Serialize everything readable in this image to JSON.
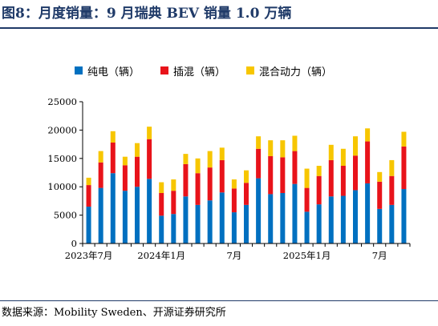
{
  "title": "图8：月度销量：9 月瑞典 BEV 销量 1.0 万辆",
  "source": "数据来源：Mobility Sweden、开源证券研究所",
  "colors": {
    "bev": "#0070c0",
    "phev": "#e8131a",
    "hev": "#f7c600",
    "title": "#1f3a68"
  },
  "chart_data": {
    "type": "bar",
    "stacked": true,
    "ylim": [
      0,
      25000
    ],
    "yticks": [
      0,
      5000,
      10000,
      15000,
      20000,
      25000
    ],
    "xtick_labels": [
      {
        "index": 0,
        "label": "2023年7月"
      },
      {
        "index": 6,
        "label": "2024年1月"
      },
      {
        "index": 12,
        "label": "7月"
      },
      {
        "index": 18,
        "label": "2025年1月"
      },
      {
        "index": 24,
        "label": "7月"
      }
    ],
    "categories": [
      "2023-07",
      "2023-08",
      "2023-09",
      "2023-10",
      "2023-11",
      "2023-12",
      "2024-01",
      "2024-02",
      "2024-03",
      "2024-04",
      "2024-05",
      "2024-06",
      "2024-07",
      "2024-08",
      "2024-09",
      "2024-10",
      "2024-11",
      "2024-12",
      "2025-01",
      "2025-02",
      "2025-03",
      "2025-04",
      "2025-05",
      "2025-06",
      "2025-07",
      "2025-08",
      "2025-09"
    ],
    "series": [
      {
        "name": "纯电（辆）",
        "color": "#0070c0",
        "values": [
          6500,
          9800,
          12400,
          9300,
          10000,
          11400,
          4900,
          5200,
          8300,
          6800,
          7600,
          9000,
          5500,
          6800,
          11500,
          8700,
          8900,
          10500,
          5600,
          6900,
          8300,
          8400,
          9400,
          10600,
          6100,
          6800,
          9600
        ]
      },
      {
        "name": "插混（辆）",
        "color": "#e8131a",
        "values": [
          3800,
          4500,
          5400,
          4500,
          5300,
          7000,
          4000,
          4100,
          5700,
          5600,
          5800,
          5700,
          4200,
          3900,
          5200,
          6700,
          6300,
          5800,
          4200,
          5000,
          6400,
          5300,
          6100,
          7400,
          4800,
          5100,
          7500
        ]
      },
      {
        "name": "混合动力（辆）",
        "color": "#f7c600",
        "values": [
          1300,
          2000,
          2000,
          1500,
          2400,
          2200,
          1900,
          2000,
          1800,
          2600,
          2900,
          2200,
          1600,
          2200,
          2200,
          2800,
          3000,
          2700,
          3400,
          1800,
          2700,
          3000,
          3400,
          2300,
          1700,
          2800,
          2600
        ]
      }
    ]
  }
}
